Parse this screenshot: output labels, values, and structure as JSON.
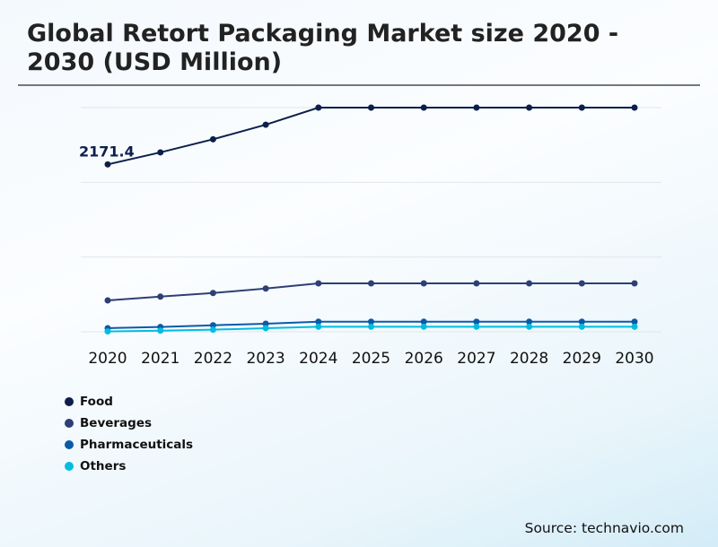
{
  "title": "Global Retort Packaging Market size 2020 - 2030 (USD Million)",
  "source": "Source: technavio.com",
  "chart_data": {
    "type": "line",
    "title": "Global Retort Packaging Market size 2020 - 2030 (USD Million)",
    "categories": [
      "2020",
      "2021",
      "2022",
      "2023",
      "2024",
      "2025",
      "2026",
      "2027",
      "2028",
      "2029",
      "2030"
    ],
    "ylim": [
      0,
      2908
    ],
    "grid": true,
    "y_tick_labels_shown": false,
    "legend_placement": "bottom-left",
    "annotations": [
      {
        "series": "Food",
        "category": "2020",
        "text": "2171.4"
      }
    ],
    "series": [
      {
        "name": "Food",
        "color": "#0c1f4b",
        "values": [
          2171.4,
          2327,
          2497,
          2686,
          2908,
          2908,
          2908,
          2908,
          2908,
          2908,
          2908
        ]
      },
      {
        "name": "Beverages",
        "color": "#2e3f75",
        "values": [
          407,
          456,
          503,
          561,
          628,
          628,
          628,
          628,
          628,
          628,
          628
        ]
      },
      {
        "name": "Pharmaceuticals",
        "color": "#0b5aa8",
        "values": [
          47,
          62,
          85,
          105,
          131,
          131,
          131,
          131,
          131,
          131,
          131
        ]
      },
      {
        "name": "Others",
        "color": "#00bde0",
        "values": [
          5,
          15,
          27,
          47,
          66,
          66,
          66,
          66,
          66,
          66,
          66
        ]
      }
    ]
  }
}
